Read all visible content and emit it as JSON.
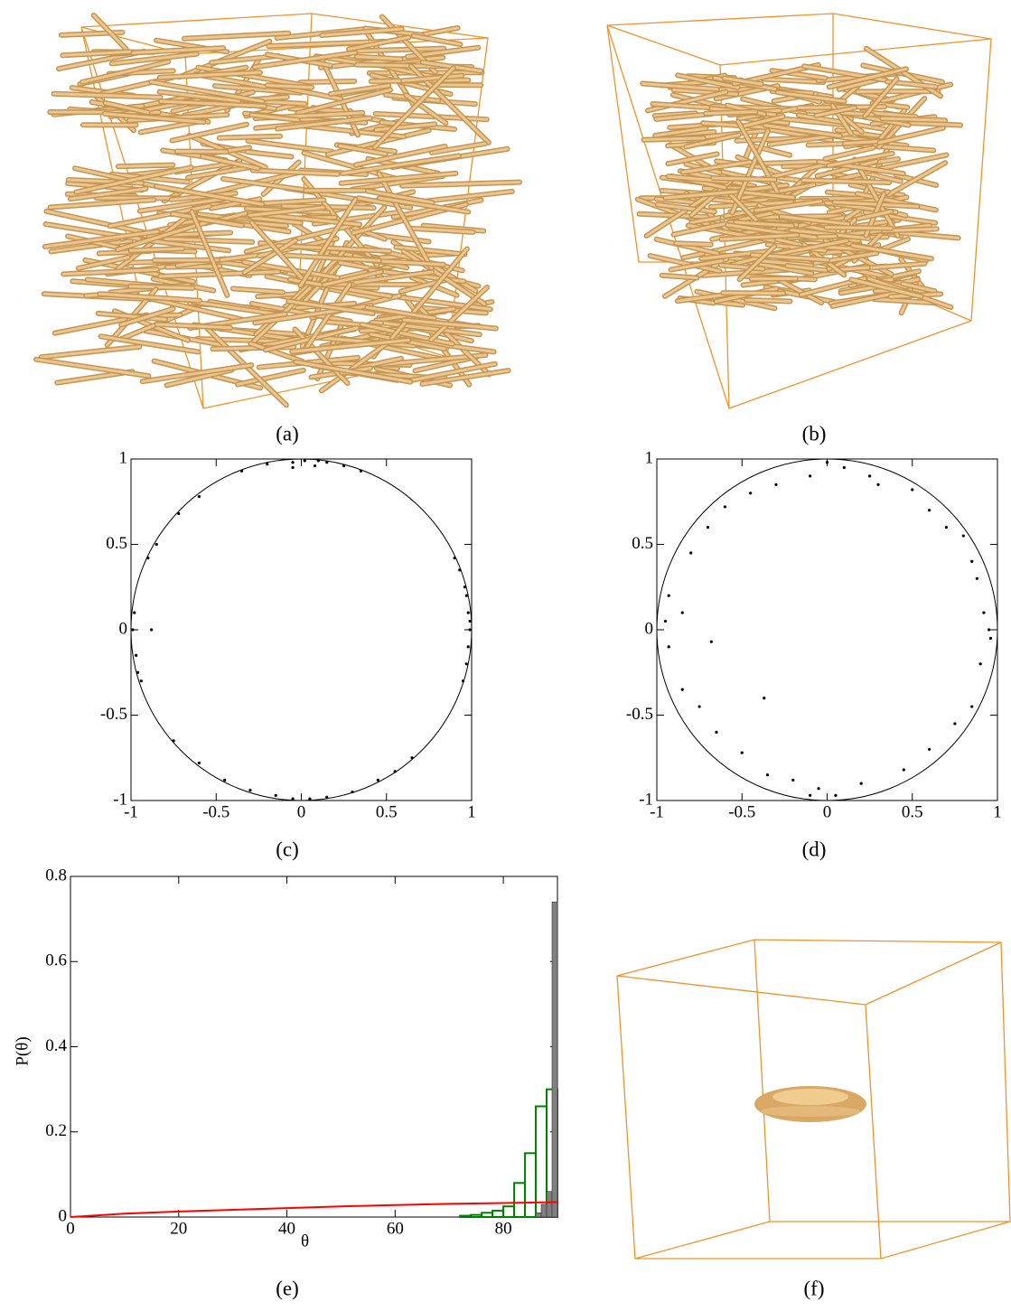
{
  "chart_data": [
    {
      "type": "scatter",
      "caption": "(c)",
      "xlim": [
        -1,
        1
      ],
      "ylim": [
        -1,
        1
      ],
      "xticks": [
        -1,
        -0.5,
        0,
        0.5,
        1
      ],
      "yticks": [
        -1,
        -0.5,
        0,
        0.5,
        1
      ],
      "reference_circle": 1,
      "color": "#000000",
      "x": [
        0.02,
        -0.05,
        0.1,
        0.15,
        0.25,
        -0.2,
        -0.35,
        0.35,
        -0.05,
        0.08,
        0.97,
        0.98,
        0.99,
        0.98,
        0.97,
        0.95,
        0.99,
        0.96,
        0.93,
        0.9,
        0.05,
        -0.05,
        0.15,
        -0.15,
        0.3,
        0.45,
        0.55,
        0.65,
        -0.3,
        -0.45,
        -0.98,
        -0.99,
        -0.97,
        -0.96,
        -0.94,
        -0.9,
        -0.85,
        -0.72,
        -0.6,
        -0.75,
        -0.6,
        -0.88
      ],
      "values": [
        0.99,
        0.98,
        0.99,
        0.98,
        0.96,
        0.97,
        0.93,
        0.93,
        0.95,
        0.96,
        0.2,
        0.1,
        0,
        -0.1,
        -0.2,
        -0.3,
        0.05,
        0.25,
        0.35,
        0.42,
        -0.99,
        -0.99,
        -0.98,
        -0.97,
        -0.95,
        -0.88,
        -0.83,
        -0.75,
        -0.94,
        -0.88,
        0.1,
        0,
        -0.15,
        -0.25,
        -0.3,
        0.42,
        0.5,
        0.68,
        0.78,
        -0.65,
        -0.78,
        0
      ]
    },
    {
      "type": "scatter",
      "caption": "(d)",
      "xlim": [
        -1,
        1
      ],
      "ylim": [
        -1,
        1
      ],
      "xticks": [
        -1,
        -0.5,
        0,
        0.5,
        1
      ],
      "yticks": [
        -1,
        -0.5,
        0,
        0.5,
        1
      ],
      "reference_circle": 1,
      "color": "#000000",
      "x": [
        0,
        -0.1,
        0.1,
        0.25,
        0.3,
        -0.3,
        -0.45,
        0.5,
        0.6,
        0.7,
        -0.6,
        -0.7,
        -0.8,
        0.85,
        0.88,
        0.92,
        0.95,
        0.96,
        0.9,
        0.85,
        0.75,
        0.6,
        0.45,
        0.2,
        0.05,
        -0.05,
        -0.2,
        -0.35,
        -0.5,
        -0.65,
        -0.75,
        -0.85,
        -0.93,
        -0.95,
        -0.93,
        -0.68,
        -0.37,
        -0.85,
        0.8,
        -0.1
      ],
      "values": [
        0.98,
        0.9,
        0.95,
        0.9,
        0.85,
        0.85,
        0.8,
        0.82,
        0.7,
        0.6,
        0.72,
        0.6,
        0.45,
        0.4,
        0.3,
        0.1,
        0,
        -0.05,
        -0.2,
        -0.45,
        -0.55,
        -0.7,
        -0.82,
        -0.9,
        -0.97,
        -0.93,
        -0.88,
        -0.85,
        -0.72,
        -0.6,
        -0.45,
        -0.35,
        -0.1,
        0.05,
        0.2,
        -0.07,
        -0.4,
        0.1,
        0.55,
        -0.97
      ]
    },
    {
      "type": "histogram",
      "caption": "(e)",
      "xlabel": "θ",
      "ylabel": "P(θ)",
      "xlim": [
        0,
        90
      ],
      "ylim": [
        0,
        0.8
      ],
      "xticks": [
        0,
        20,
        40,
        60,
        80
      ],
      "yticks": [
        0,
        0.2,
        0.4,
        0.6,
        0.8
      ],
      "series": [
        {
          "color": "#008000",
          "fill": false,
          "bins": [
            72,
            74,
            76,
            78,
            80,
            82,
            84,
            86,
            88,
            90
          ],
          "values": [
            0.003,
            0.005,
            0.01,
            0.015,
            0.025,
            0.08,
            0.15,
            0.26,
            0.3
          ]
        },
        {
          "color": "#808080",
          "fill": true,
          "bins": [
            86,
            87,
            88,
            89,
            90
          ],
          "values": [
            0.01,
            0.03,
            0.06,
            0.74
          ]
        },
        {
          "color": "#ff0000",
          "type": "line",
          "x": [
            0,
            10,
            20,
            30,
            40,
            50,
            60,
            70,
            80,
            90
          ],
          "values": [
            0,
            0.008,
            0.013,
            0.017,
            0.021,
            0.025,
            0.028,
            0.031,
            0.033,
            0.035
          ]
        }
      ]
    }
  ],
  "images": [
    {
      "caption": "(a)"
    },
    {
      "caption": "(b)"
    },
    {
      "caption": "(f)"
    }
  ]
}
